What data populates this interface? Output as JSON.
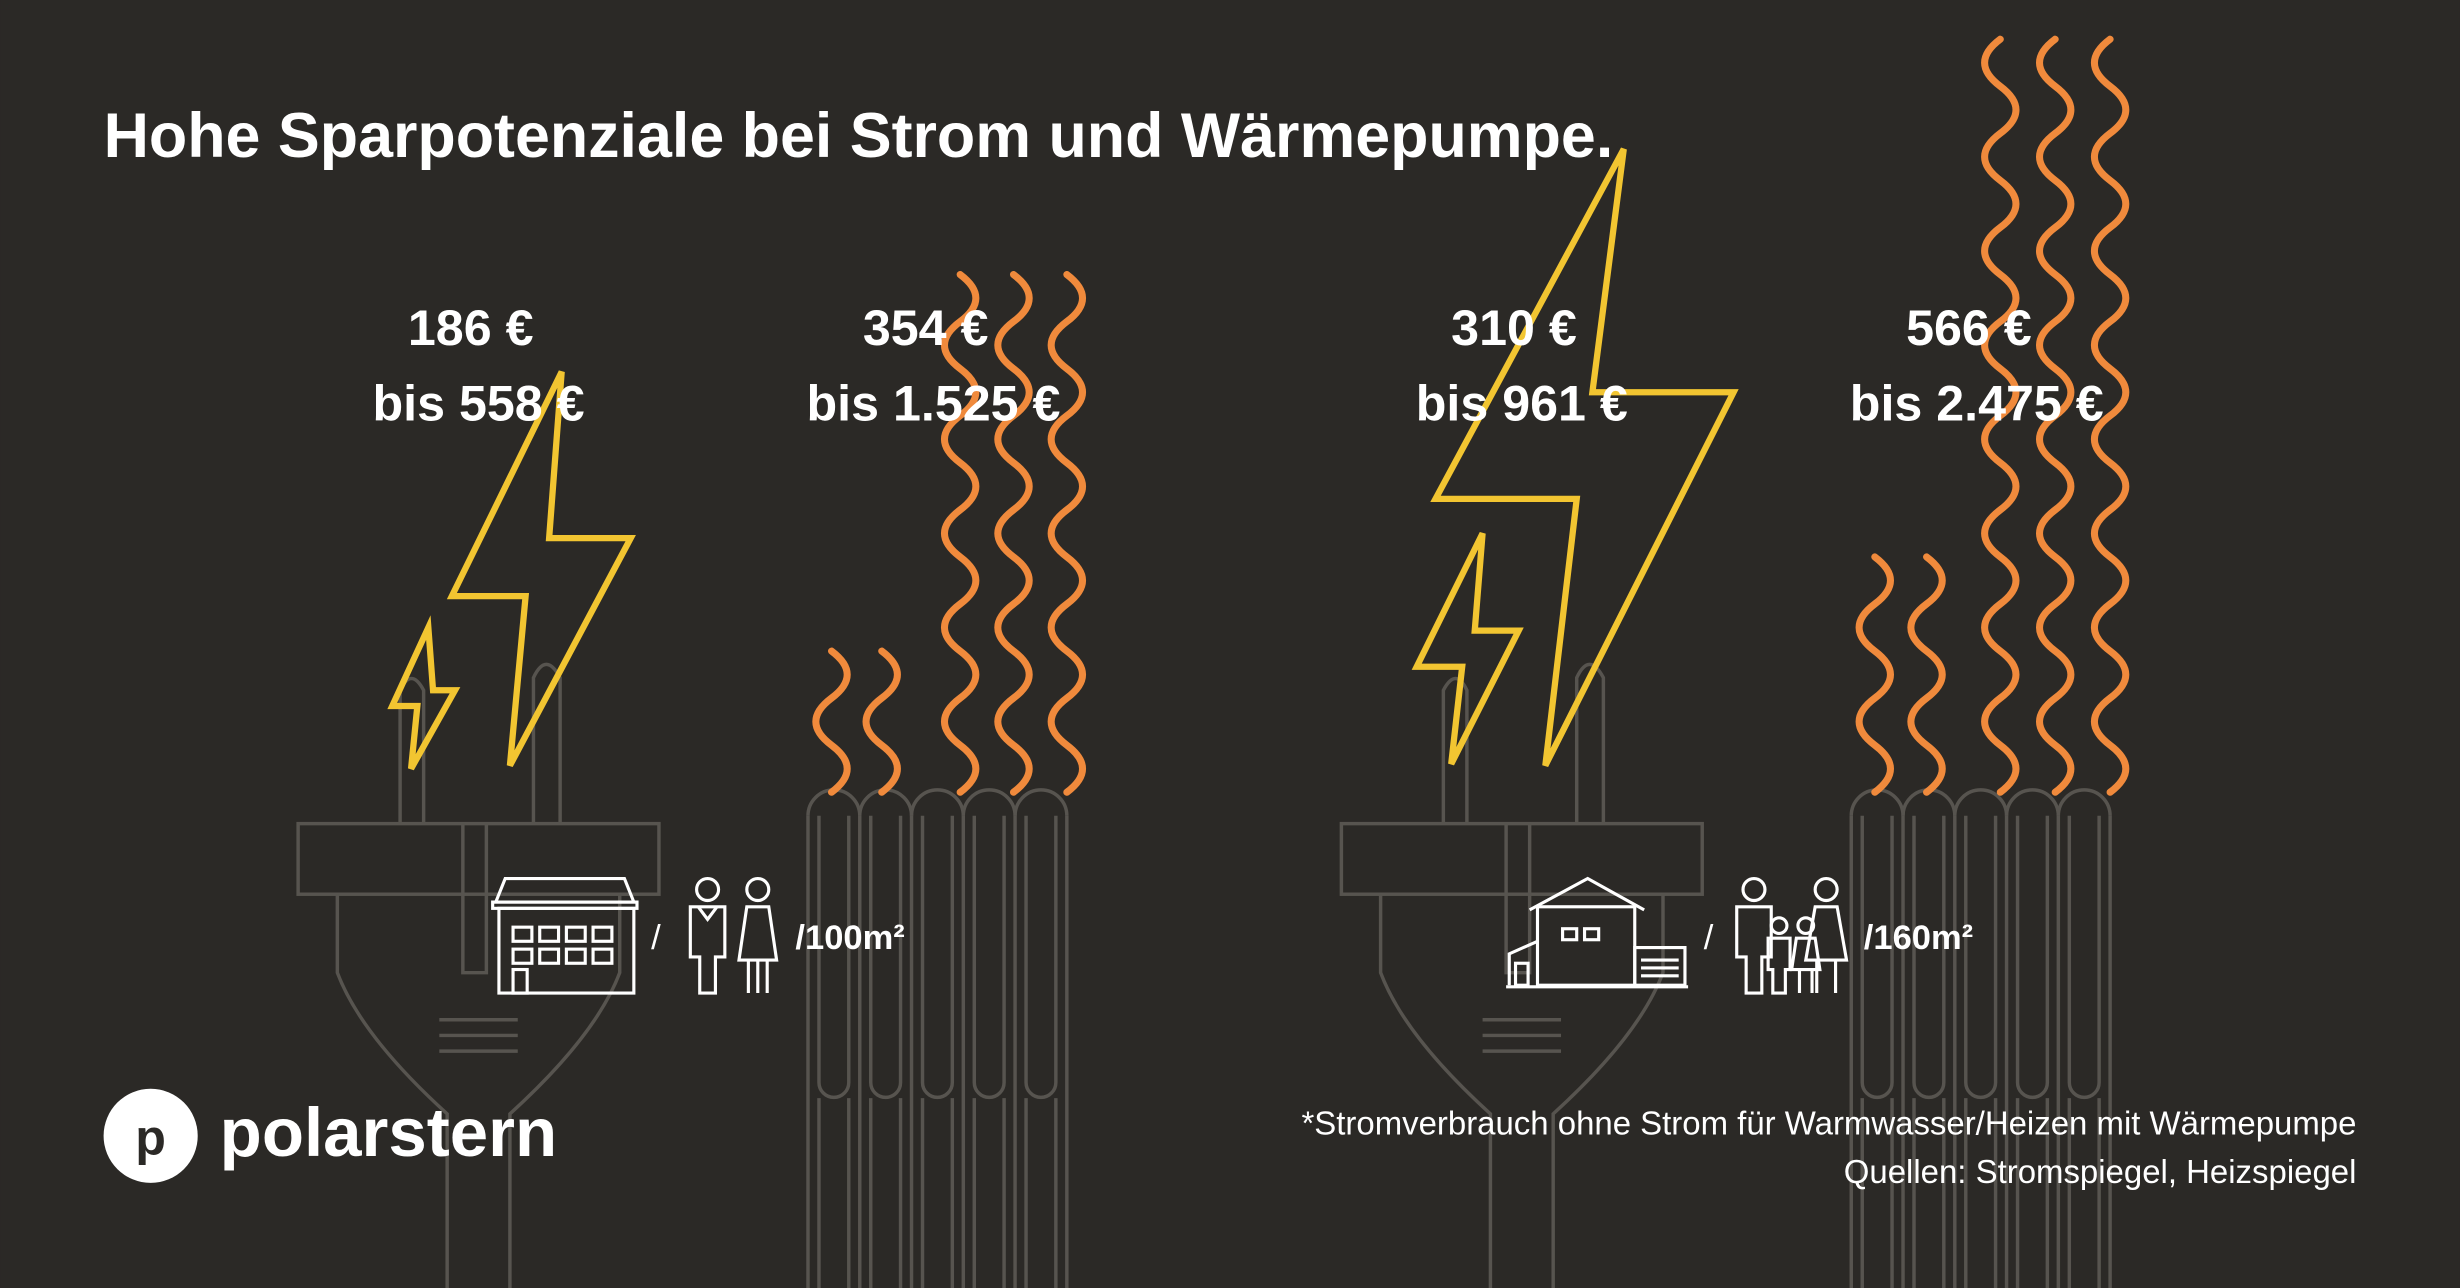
{
  "title": "Hohe Sparpotenziale bei Strom und Wärmepumpe.",
  "groups": [
    {
      "per_area": "/100m²",
      "household_icons": [
        "apartment-building-icon",
        "couple-icon"
      ],
      "separator": "/",
      "items": [
        {
          "type": "strom",
          "icon": "power-plug-lightning-icon",
          "price_from": "186 €",
          "price_to": "bis 558 €"
        },
        {
          "type": "heizen",
          "icon": "heating-coil-icon",
          "price_from": "354 €",
          "price_to": "bis 1.525 €"
        }
      ]
    },
    {
      "per_area": "/160m²",
      "household_icons": [
        "house-icon",
        "family-icon"
      ],
      "separator": "/",
      "items": [
        {
          "type": "strom",
          "icon": "power-plug-lightning-icon",
          "price_from": "310 €",
          "price_to": "bis 961 €"
        },
        {
          "type": "heizen",
          "icon": "heating-coil-icon",
          "price_from": "566 €",
          "price_to": "bis 2.475 €"
        }
      ]
    }
  ],
  "footnote": "*Stromverbrauch ohne Strom für Warmwasser/Heizen mit Wärmepumpe",
  "sources": "Quellen: Stromspiegel, Heizspiegel",
  "logo": {
    "mark": "p",
    "name": "polarstern"
  },
  "colors": {
    "background": "#2b2926",
    "lightning": "#f2c531",
    "heat_waves": "#f08a3c",
    "outline": "#57544f",
    "text": "#ffffff"
  }
}
